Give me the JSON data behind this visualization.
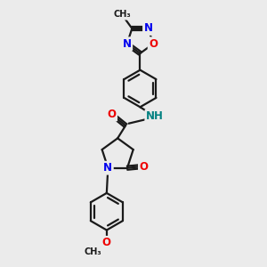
{
  "background_color": "#ebebeb",
  "bond_color": "#1a1a1a",
  "bond_width": 1.6,
  "atom_colors": {
    "N": "#0000ee",
    "O": "#ee0000",
    "NH": "#008080",
    "C": "#1a1a1a"
  },
  "font_size": 8.5,
  "fig_width": 3.0,
  "fig_height": 3.0,
  "dpi": 100,
  "xlim": [
    0,
    10
  ],
  "ylim": [
    0,
    10
  ]
}
